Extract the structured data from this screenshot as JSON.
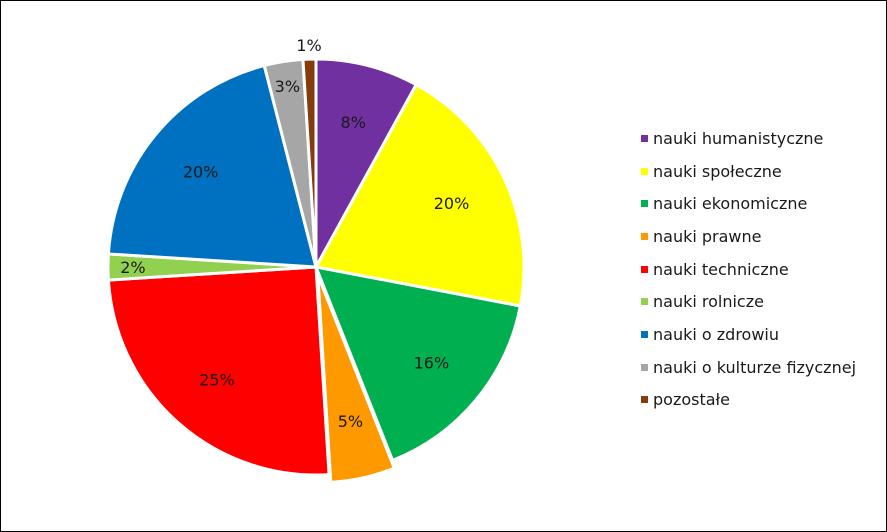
{
  "chart_data": {
    "type": "pie",
    "title": "",
    "legend_position": "right",
    "slices": [
      {
        "label": "nauki humanistyczne",
        "value": 8,
        "display": "8%",
        "color": "#7030A0"
      },
      {
        "label": "nauki społeczne",
        "value": 20,
        "display": "20%",
        "color": "#FFFF00"
      },
      {
        "label": "nauki ekonomiczne",
        "value": 16,
        "display": "16%",
        "color": "#00B050"
      },
      {
        "label": "nauki prawne",
        "value": 5,
        "display": "5%",
        "color": "#FF9900"
      },
      {
        "label": "nauki techniczne",
        "value": 25,
        "display": "25%",
        "color": "#FF0000"
      },
      {
        "label": "nauki rolnicze",
        "value": 2,
        "display": "2%",
        "color": "#92D050"
      },
      {
        "label": "nauki o zdrowiu",
        "value": 20,
        "display": "20%",
        "color": "#0070C0"
      },
      {
        "label": "nauki o kulturze fizycznej",
        "value": 3,
        "display": "3%",
        "color": "#A6A6A6"
      },
      {
        "label": "pozostałe",
        "value": 1,
        "display": "1%",
        "color": "#843C0C"
      }
    ]
  }
}
